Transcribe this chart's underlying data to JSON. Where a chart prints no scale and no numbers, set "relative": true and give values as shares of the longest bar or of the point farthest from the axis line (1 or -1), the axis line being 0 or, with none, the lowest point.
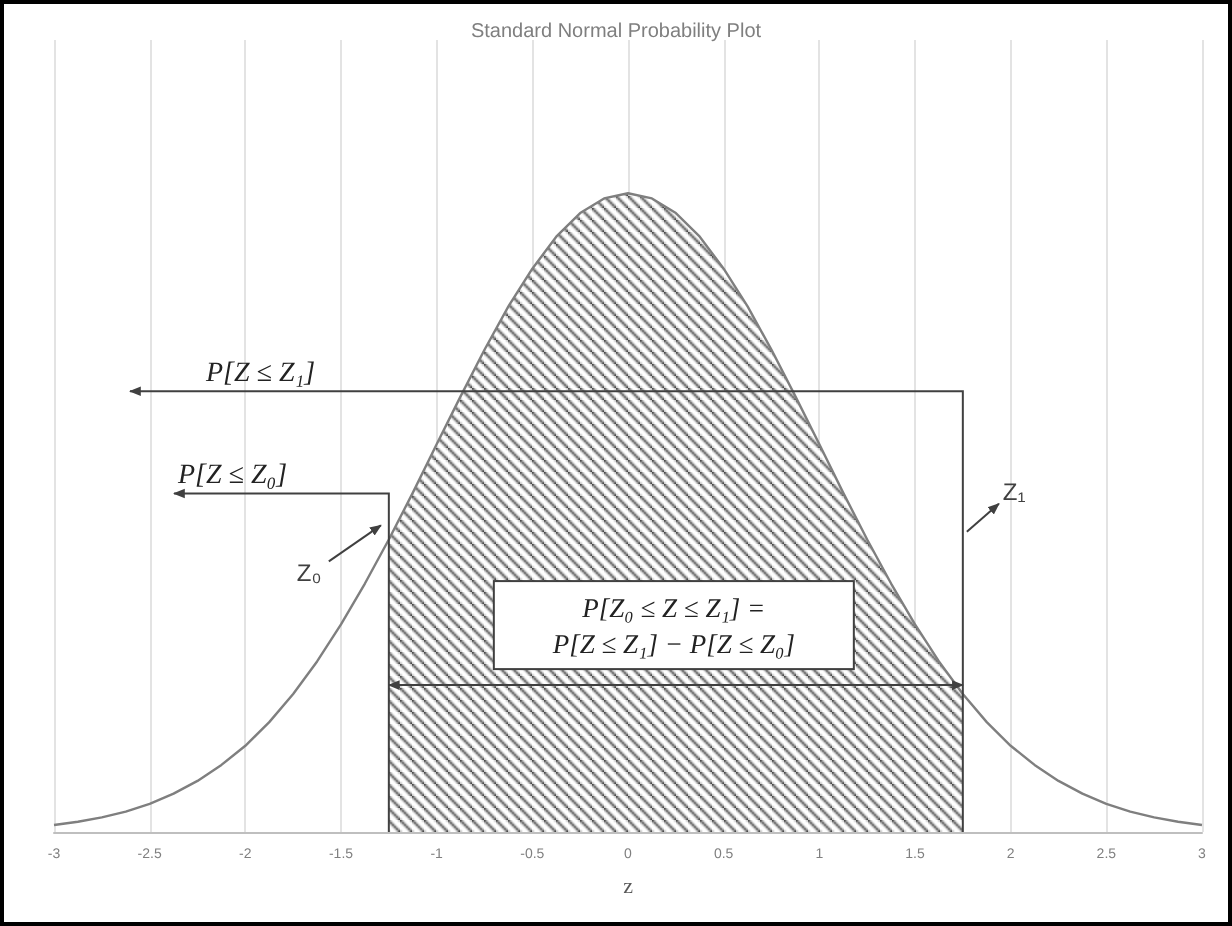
{
  "chart_data": {
    "type": "line",
    "title": "Standard Normal Probability Plot",
    "xlabel": "z",
    "relative": true,
    "xlim": [
      -3,
      3
    ],
    "xticks": [
      -3,
      -2.5,
      -2,
      -1.5,
      -1,
      -0.5,
      0,
      0.5,
      1,
      1.5,
      2,
      2.5,
      3
    ],
    "grid": "x",
    "marker": "none",
    "line_style": "solid",
    "series": [
      {
        "color": "#7f7f7f",
        "x": [
          -3,
          -2.875,
          -2.75,
          -2.625,
          -2.5,
          -2.375,
          -2.25,
          -2.125,
          -2,
          -1.875,
          -1.75,
          -1.625,
          -1.5,
          -1.375,
          -1.25,
          -1.125,
          -1,
          -0.875,
          -0.75,
          -0.625,
          -0.5,
          -0.375,
          -0.25,
          -0.125,
          0,
          0.125,
          0.25,
          0.375,
          0.5,
          0.625,
          0.75,
          0.875,
          1,
          1.125,
          1.25,
          1.375,
          1.5,
          1.625,
          1.75,
          1.875,
          2,
          2.125,
          2.25,
          2.375,
          2.5,
          2.625,
          2.75,
          2.875,
          3
        ],
        "values": [
          0.011,
          0.016,
          0.023,
          0.032,
          0.044,
          0.06,
          0.08,
          0.105,
          0.135,
          0.172,
          0.216,
          0.267,
          0.325,
          0.389,
          0.458,
          0.531,
          0.607,
          0.682,
          0.755,
          0.823,
          0.882,
          0.932,
          0.969,
          0.992,
          1,
          0.992,
          0.969,
          0.932,
          0.882,
          0.823,
          0.755,
          0.682,
          0.607,
          0.531,
          0.458,
          0.389,
          0.325,
          0.267,
          0.216,
          0.172,
          0.135,
          0.105,
          0.08,
          0.06,
          0.044,
          0.032,
          0.023,
          0.016,
          0.011
        ]
      },
      {
        "type": "area",
        "color": "#404040",
        "x": [
          -1.25,
          -1.125,
          -1,
          -0.875,
          -0.75,
          -0.625,
          -0.5,
          -0.375,
          -0.25,
          -0.125,
          0,
          0.125,
          0.25,
          0.375,
          0.5,
          0.625,
          0.75,
          0.875,
          1,
          1.125,
          1.25,
          1.375,
          1.5,
          1.625,
          1.75
        ],
        "values": [
          0.458,
          0.531,
          0.607,
          0.682,
          0.755,
          0.823,
          0.882,
          0.932,
          0.969,
          0.992,
          1,
          0.992,
          0.969,
          0.932,
          0.882,
          0.823,
          0.755,
          0.682,
          0.607,
          0.531,
          0.458,
          0.389,
          0.325,
          0.267,
          0.216
        ]
      }
    ],
    "annotations": [
      "P[Z ≤ Z₁]",
      "P[Z ≤ Z₀]",
      "Z₀",
      "Z₁",
      "P[Z₀ ≤ Z ≤ Z₁] =\nP[Z ≤ Z₁] − P[Z ≤ Z₀]"
    ]
  }
}
